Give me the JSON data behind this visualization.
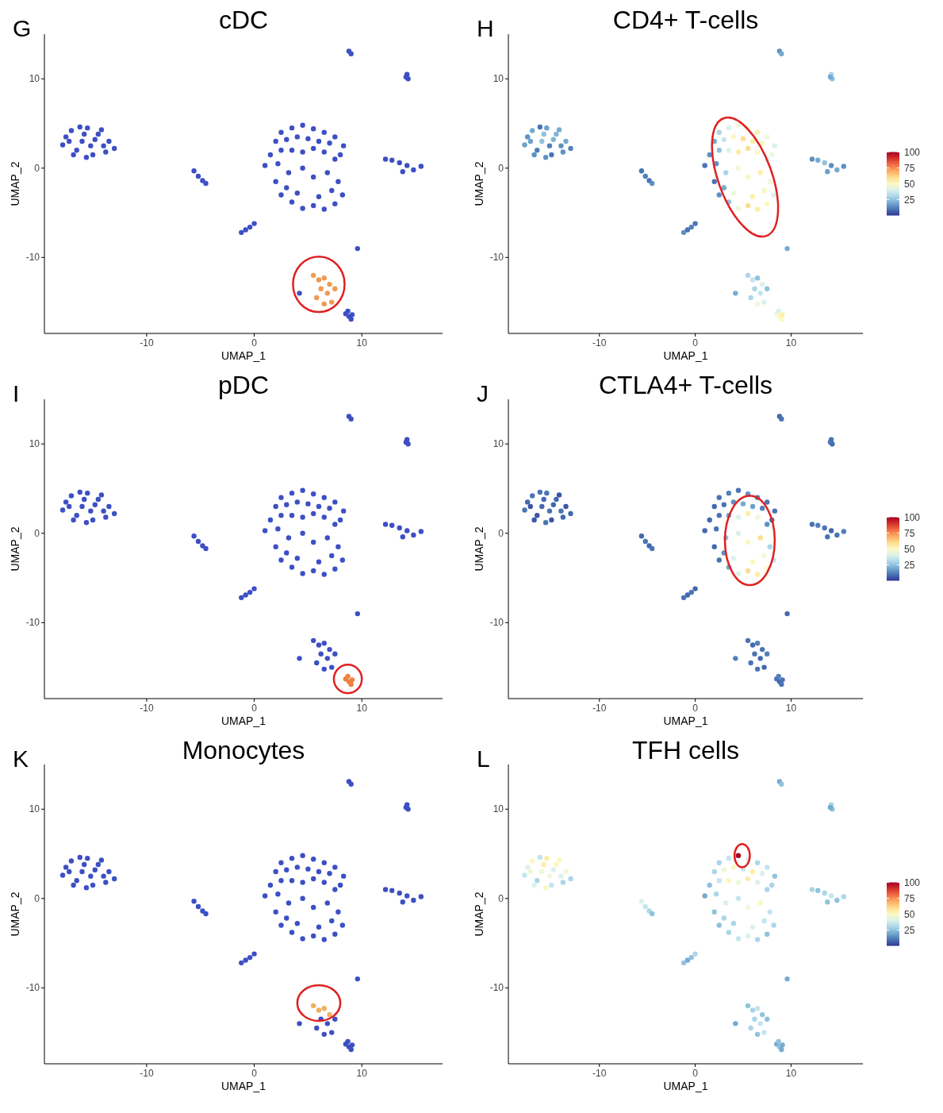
{
  "chart_data": [
    {
      "type": "scatter",
      "title": "cDC",
      "annotations": [
        "G"
      ],
      "xlabel": "UMAP_1",
      "ylabel": "UMAP_2",
      "xlim": [
        -19.5,
        17.5
      ],
      "ylim": [
        -18.5,
        15
      ],
      "xticks": [
        -10,
        0,
        10
      ],
      "yticks": [
        -10,
        0,
        10
      ],
      "marker": "circle",
      "series": [
        {
          "color": "#3d4fc4",
          "x": [
            -17.5,
            -17,
            -16.5,
            -16,
            -15.5,
            -15,
            -14.5,
            -14,
            -13.5,
            -13,
            -17.8,
            -16.8,
            -15.8,
            -15.2,
            -14.2,
            -13.8,
            -16.2,
            -17.2,
            -14.8,
            -15.6,
            -5.6,
            -5.2,
            -4.8,
            -4.5,
            -1.2,
            -0.8,
            -0.4,
            0,
            2.5,
            3.5,
            4.5,
            5.5,
            6.5,
            7.5,
            8.3,
            2,
            3,
            4,
            5,
            6,
            7,
            8,
            1.5,
            2.5,
            3.5,
            4.5,
            5.5,
            6.5,
            7.5,
            1,
            2.2,
            3.2,
            4.5,
            2,
            3,
            5.5,
            6.8,
            7.8,
            2.5,
            3.5,
            4.5,
            5.5,
            6.5,
            7.5,
            8.2,
            7.2,
            6,
            4,
            12.2,
            12.8,
            13.5,
            14.2,
            14.8,
            15.5,
            13.8,
            8.8,
            9,
            14.2,
            14.3,
            14.1,
            4.2,
            8.5,
            8.8,
            9.1,
            8.7,
            9,
            9.6
          ],
          "values": [
            3.5,
            4.2,
            2,
            3,
            4.5,
            1.5,
            3.8,
            2.5,
            3,
            2.2,
            2.6,
            1.5,
            3.8,
            2.5,
            4.3,
            1.8,
            4.6,
            3,
            3.2,
            1.2,
            -0.3,
            -0.9,
            -1.4,
            -1.7,
            -7.2,
            -6.9,
            -6.6,
            -6.2,
            4,
            4.5,
            4.8,
            4.4,
            4,
            3.5,
            2.5,
            3,
            3.2,
            3.5,
            3.3,
            3,
            2.8,
            1.5,
            1.5,
            2,
            2,
            1.8,
            2.2,
            1.8,
            1,
            0.3,
            0.5,
            -0.5,
            0,
            -1.5,
            -2.2,
            -1,
            -0.5,
            -1.5,
            -3,
            -3.8,
            -4.5,
            -4.2,
            -4.6,
            -4,
            -3,
            -2.5,
            -3.2,
            -2.8,
            1,
            0.9,
            0.6,
            0.3,
            -0.2,
            0.2,
            -0.4,
            13.1,
            12.8,
            10.5,
            10,
            10.2,
            -14,
            -16.3,
            -16.6,
            -16.4,
            -16,
            -16.9,
            -9
          ]
        },
        {
          "color": "#f09a50",
          "x": [
            5.5,
            6,
            6.5,
            7,
            6.2,
            6.8,
            7.5,
            5.8,
            7.2,
            6.5
          ],
          "values": [
            -12,
            -12.5,
            -12.3,
            -13,
            -13.5,
            -14,
            -13.5,
            -14.5,
            -15,
            -15.2
          ]
        }
      ]
    },
    {
      "type": "scatter",
      "title": "CD4+ T-cells",
      "annotations": [
        "H"
      ],
      "xlabel": "UMAP_1",
      "ylabel": "UMAP_2",
      "xlim": [
        -19.5,
        17.5
      ],
      "ylim": [
        -18.5,
        15
      ],
      "xticks": [
        -10,
        0,
        10
      ],
      "yticks": [
        -10,
        0,
        10
      ],
      "marker": "circle",
      "clim": [
        0,
        100
      ],
      "cticks": [
        25,
        50,
        75,
        100
      ],
      "x": [
        -17.5,
        -17,
        -16.5,
        -16,
        -15.5,
        -15,
        -14.5,
        -14,
        -13.5,
        -13,
        -17.8,
        -16.8,
        -15.8,
        -15.2,
        -14.2,
        -13.8,
        -16.2,
        -17.2,
        -14.8,
        -15.6,
        -5.6,
        -5.2,
        -4.8,
        -4.5,
        -1.2,
        -0.8,
        -0.4,
        0,
        2.5,
        3.5,
        4.5,
        5.5,
        6.5,
        7.5,
        8.3,
        2,
        3,
        4,
        5,
        6,
        7,
        8,
        1.5,
        2.5,
        3.5,
        4.5,
        5.5,
        6.5,
        7.5,
        1,
        2.2,
        3.2,
        4.5,
        2,
        3,
        5.5,
        6.8,
        7.8,
        2.5,
        3.5,
        4.5,
        5.5,
        6.5,
        7.5,
        8.2,
        7.2,
        6,
        4,
        12.2,
        12.8,
        13.5,
        14.2,
        14.8,
        15.5,
        13.8,
        8.8,
        9,
        14.2,
        14.3,
        14.1,
        5.5,
        6,
        6.5,
        7,
        6.2,
        6.8,
        7.5,
        5.8,
        7.2,
        6.5,
        4.2,
        8.5,
        8.8,
        9.1,
        8.7,
        9,
        9.6
      ],
      "values": [
        3.5,
        4.2,
        2,
        3,
        4.5,
        1.5,
        3.8,
        2.5,
        3,
        2.2,
        2.6,
        1.5,
        3.8,
        2.5,
        4.3,
        1.8,
        4.6,
        3,
        3.2,
        1.2,
        -0.3,
        -0.9,
        -1.4,
        -1.7,
        -7.2,
        -6.9,
        -6.6,
        -6.2,
        4,
        4.5,
        4.8,
        4.4,
        4,
        3.5,
        2.5,
        3,
        3.2,
        3.5,
        3.3,
        3,
        2.8,
        1.5,
        1.5,
        2,
        2,
        1.8,
        2.2,
        1.8,
        1,
        0.3,
        0.5,
        -0.5,
        0,
        -1.5,
        -2.2,
        -1,
        -0.5,
        -1.5,
        -3,
        -3.8,
        -4.5,
        -4.2,
        -4.6,
        -4,
        -3,
        -2.5,
        -3.2,
        -2.8,
        1,
        0.9,
        0.6,
        0.3,
        -0.2,
        0.2,
        -0.4,
        13.1,
        12.8,
        10.5,
        10,
        10.2,
        -12,
        -12.5,
        -12.3,
        -13,
        -13.5,
        -14,
        -13.5,
        -14.5,
        -15,
        -15.2,
        -14,
        -16.3,
        -16.6,
        -16.4,
        -16,
        -16.9,
        -9
      ],
      "cvalues": [
        15,
        20,
        12,
        25,
        18,
        10,
        22,
        15,
        20,
        12,
        18,
        15,
        25,
        12,
        20,
        15,
        10,
        18,
        22,
        15,
        10,
        12,
        10,
        15,
        15,
        10,
        12,
        10,
        30,
        40,
        45,
        50,
        55,
        45,
        40,
        20,
        35,
        50,
        60,
        55,
        50,
        45,
        15,
        25,
        40,
        55,
        60,
        50,
        40,
        10,
        15,
        30,
        45,
        10,
        20,
        50,
        55,
        45,
        15,
        25,
        45,
        60,
        55,
        50,
        40,
        50,
        55,
        45,
        15,
        20,
        25,
        15,
        20,
        15,
        18,
        15,
        20,
        30,
        25,
        20,
        30,
        35,
        25,
        40,
        30,
        35,
        25,
        30,
        40,
        45,
        20,
        45,
        50,
        55,
        40,
        50,
        20
      ]
    },
    {
      "type": "scatter",
      "title": "pDC",
      "annotations": [
        "I"
      ],
      "xlabel": "UMAP_1",
      "ylabel": "UMAP_2",
      "xlim": [
        -19.5,
        17.5
      ],
      "ylim": [
        -18.5,
        15
      ],
      "xticks": [
        -10,
        0,
        10
      ],
      "yticks": [
        -10,
        0,
        10
      ],
      "marker": "circle",
      "series": [
        {
          "color": "#3d4fc4",
          "x": [
            -17.5,
            -17,
            -16.5,
            -16,
            -15.5,
            -15,
            -14.5,
            -14,
            -13.5,
            -13,
            -17.8,
            -16.8,
            -15.8,
            -15.2,
            -14.2,
            -13.8,
            -16.2,
            -17.2,
            -14.8,
            -15.6,
            -5.6,
            -5.2,
            -4.8,
            -4.5,
            -1.2,
            -0.8,
            -0.4,
            0,
            2.5,
            3.5,
            4.5,
            5.5,
            6.5,
            7.5,
            8.3,
            2,
            3,
            4,
            5,
            6,
            7,
            8,
            1.5,
            2.5,
            3.5,
            4.5,
            5.5,
            6.5,
            7.5,
            1,
            2.2,
            3.2,
            4.5,
            2,
            3,
            5.5,
            6.8,
            7.8,
            2.5,
            3.5,
            4.5,
            5.5,
            6.5,
            7.5,
            8.2,
            7.2,
            6,
            4,
            12.2,
            12.8,
            13.5,
            14.2,
            14.8,
            15.5,
            13.8,
            8.8,
            9,
            14.2,
            14.3,
            14.1,
            5.5,
            6,
            6.5,
            7,
            6.2,
            6.8,
            7.5,
            5.8,
            7.2,
            6.5,
            4.2,
            9.6
          ],
          "values": [
            3.5,
            4.2,
            2,
            3,
            4.5,
            1.5,
            3.8,
            2.5,
            3,
            2.2,
            2.6,
            1.5,
            3.8,
            2.5,
            4.3,
            1.8,
            4.6,
            3,
            3.2,
            1.2,
            -0.3,
            -0.9,
            -1.4,
            -1.7,
            -7.2,
            -6.9,
            -6.6,
            -6.2,
            4,
            4.5,
            4.8,
            4.4,
            4,
            3.5,
            2.5,
            3,
            3.2,
            3.5,
            3.3,
            3,
            2.8,
            1.5,
            1.5,
            2,
            2,
            1.8,
            2.2,
            1.8,
            1,
            0.3,
            0.5,
            -0.5,
            0,
            -1.5,
            -2.2,
            -1,
            -0.5,
            -1.5,
            -3,
            -3.8,
            -4.5,
            -4.2,
            -4.6,
            -4,
            -3,
            -2.5,
            -3.2,
            -2.8,
            1,
            0.9,
            0.6,
            0.3,
            -0.2,
            0.2,
            -0.4,
            13.1,
            12.8,
            10.5,
            10,
            10.2,
            -12,
            -12.5,
            -12.3,
            -13,
            -13.5,
            -14,
            -13.5,
            -14.5,
            -15,
            -15.2,
            -14,
            -9
          ]
        },
        {
          "color": "#f08040",
          "x": [
            8.5,
            8.8,
            9.1,
            8.7,
            9
          ],
          "values": [
            -16.3,
            -16.6,
            -16.4,
            -16,
            -16.9
          ]
        }
      ]
    },
    {
      "type": "scatter",
      "title": "CTLA4+ T-cells",
      "annotations": [
        "J"
      ],
      "xlabel": "UMAP_1",
      "ylabel": "UMAP_2",
      "xlim": [
        -19.5,
        17.5
      ],
      "ylim": [
        -18.5,
        15
      ],
      "xticks": [
        -10,
        0,
        10
      ],
      "yticks": [
        -10,
        0,
        10
      ],
      "marker": "circle",
      "clim": [
        0,
        100
      ],
      "cticks": [
        25,
        50,
        75,
        100
      ],
      "x": [
        -17.5,
        -17,
        -16.5,
        -16,
        -15.5,
        -15,
        -14.5,
        -14,
        -13.5,
        -13,
        -17.8,
        -16.8,
        -15.8,
        -15.2,
        -14.2,
        -13.8,
        -16.2,
        -17.2,
        -14.8,
        -15.6,
        -5.6,
        -5.2,
        -4.8,
        -4.5,
        -1.2,
        -0.8,
        -0.4,
        0,
        2.5,
        3.5,
        4.5,
        5.5,
        6.5,
        7.5,
        8.3,
        2,
        3,
        4,
        5,
        6,
        7,
        8,
        1.5,
        2.5,
        3.5,
        4.5,
        5.5,
        6.5,
        7.5,
        1,
        2.2,
        3.2,
        4.5,
        2,
        3,
        5.5,
        6.8,
        7.8,
        2.5,
        3.5,
        4.5,
        5.5,
        6.5,
        7.5,
        8.2,
        7.2,
        6,
        4,
        12.2,
        12.8,
        13.5,
        14.2,
        14.8,
        15.5,
        13.8,
        8.8,
        9,
        14.2,
        14.3,
        14.1,
        5.5,
        6,
        6.5,
        7,
        6.2,
        6.8,
        7.5,
        5.8,
        7.2,
        6.5,
        4.2,
        8.5,
        8.8,
        9.1,
        8.7,
        9,
        9.6
      ],
      "values": [
        3.5,
        4.2,
        2,
        3,
        4.5,
        1.5,
        3.8,
        2.5,
        3,
        2.2,
        2.6,
        1.5,
        3.8,
        2.5,
        4.3,
        1.8,
        4.6,
        3,
        3.2,
        1.2,
        -0.3,
        -0.9,
        -1.4,
        -1.7,
        -7.2,
        -6.9,
        -6.6,
        -6.2,
        4,
        4.5,
        4.8,
        4.4,
        4,
        3.5,
        2.5,
        3,
        3.2,
        3.5,
        3.3,
        3,
        2.8,
        1.5,
        1.5,
        2,
        2,
        1.8,
        2.2,
        1.8,
        1,
        0.3,
        0.5,
        -0.5,
        0,
        -1.5,
        -2.2,
        -1,
        -0.5,
        -1.5,
        -3,
        -3.8,
        -4.5,
        -4.2,
        -4.6,
        -4,
        -3,
        -2.5,
        -3.2,
        -2.8,
        1,
        0.9,
        0.6,
        0.3,
        -0.2,
        0.2,
        -0.4,
        13.1,
        12.8,
        10.5,
        10,
        10.2,
        -12,
        -12.5,
        -12.3,
        -13,
        -13.5,
        -14,
        -13.5,
        -14.5,
        -15,
        -15.2,
        -14,
        -16.3,
        -16.6,
        -16.4,
        -16,
        -16.9,
        -9
      ],
      "cvalues": [
        8,
        10,
        5,
        8,
        10,
        5,
        8,
        10,
        5,
        8,
        10,
        5,
        8,
        10,
        5,
        8,
        10,
        5,
        8,
        10,
        8,
        10,
        8,
        10,
        10,
        8,
        10,
        8,
        10,
        12,
        10,
        15,
        12,
        10,
        10,
        8,
        10,
        15,
        20,
        18,
        12,
        10,
        8,
        10,
        20,
        40,
        55,
        45,
        15,
        8,
        10,
        25,
        40,
        8,
        15,
        50,
        60,
        30,
        10,
        20,
        40,
        60,
        55,
        50,
        35,
        45,
        50,
        40,
        10,
        12,
        10,
        8,
        10,
        12,
        10,
        8,
        10,
        10,
        8,
        10,
        10,
        8,
        12,
        10,
        10,
        8,
        12,
        10,
        8,
        10,
        12,
        10,
        8,
        10,
        12,
        10,
        8
      ]
    },
    {
      "type": "scatter",
      "title": "Monocytes",
      "annotations": [
        "K"
      ],
      "xlabel": "UMAP_1",
      "ylabel": "UMAP_2",
      "xlim": [
        -19.5,
        17.5
      ],
      "ylim": [
        -18.5,
        15
      ],
      "xticks": [
        -10,
        0,
        10
      ],
      "yticks": [
        -10,
        0,
        10
      ],
      "marker": "circle",
      "series": [
        {
          "color": "#3d4fc4",
          "x": [
            -17.5,
            -17,
            -16.5,
            -16,
            -15.5,
            -15,
            -14.5,
            -14,
            -13.5,
            -13,
            -17.8,
            -16.8,
            -15.8,
            -15.2,
            -14.2,
            -13.8,
            -16.2,
            -17.2,
            -14.8,
            -15.6,
            -5.6,
            -5.2,
            -4.8,
            -4.5,
            -1.2,
            -0.8,
            -0.4,
            0,
            2.5,
            3.5,
            4.5,
            5.5,
            6.5,
            7.5,
            8.3,
            2,
            3,
            4,
            5,
            6,
            7,
            8,
            1.5,
            2.5,
            3.5,
            4.5,
            5.5,
            6.5,
            7.5,
            1,
            2.2,
            3.2,
            4.5,
            2,
            3,
            5.5,
            6.8,
            7.8,
            2.5,
            3.5,
            4.5,
            5.5,
            6.5,
            7.5,
            8.2,
            7.2,
            6,
            4,
            12.2,
            12.8,
            13.5,
            14.2,
            14.8,
            15.5,
            13.8,
            8.8,
            9,
            14.2,
            14.3,
            14.1,
            6.2,
            6.8,
            7.5,
            5.8,
            7.2,
            6.5,
            4.2,
            8.5,
            8.8,
            9.1,
            8.7,
            9,
            9.6
          ],
          "values": [
            3.5,
            4.2,
            2,
            3,
            4.5,
            1.5,
            3.8,
            2.5,
            3,
            2.2,
            2.6,
            1.5,
            3.8,
            2.5,
            4.3,
            1.8,
            4.6,
            3,
            3.2,
            1.2,
            -0.3,
            -0.9,
            -1.4,
            -1.7,
            -7.2,
            -6.9,
            -6.6,
            -6.2,
            4,
            4.5,
            4.8,
            4.4,
            4,
            3.5,
            2.5,
            3,
            3.2,
            3.5,
            3.3,
            3,
            2.8,
            1.5,
            1.5,
            2,
            2,
            1.8,
            2.2,
            1.8,
            1,
            0.3,
            0.5,
            -0.5,
            0,
            -1.5,
            -2.2,
            -1,
            -0.5,
            -1.5,
            -3,
            -3.8,
            -4.5,
            -4.2,
            -4.6,
            -4,
            -3,
            -2.5,
            -3.2,
            -2.8,
            1,
            0.9,
            0.6,
            0.3,
            -0.2,
            0.2,
            -0.4,
            13.1,
            12.8,
            10.5,
            10,
            10.2,
            -13.5,
            -14,
            -13.5,
            -14.5,
            -15,
            -15.2,
            -14,
            -16.3,
            -16.6,
            -16.4,
            -16,
            -16.9,
            -9
          ]
        },
        {
          "color": "#f0b060",
          "x": [
            5.5,
            6,
            6.5,
            7
          ],
          "values": [
            -12,
            -12.5,
            -12.3,
            -13
          ]
        }
      ]
    },
    {
      "type": "scatter",
      "title": "TFH cells",
      "annotations": [
        "L"
      ],
      "xlabel": "UMAP_1",
      "ylabel": "UMAP_2",
      "xlim": [
        -19.5,
        17.5
      ],
      "ylim": [
        -18.5,
        15
      ],
      "xticks": [
        -10,
        0,
        10
      ],
      "yticks": [
        -10,
        0,
        10
      ],
      "marker": "circle",
      "clim": [
        0,
        100
      ],
      "cticks": [
        25,
        50,
        75,
        100
      ],
      "x": [
        -17.5,
        -17,
        -16.5,
        -16,
        -15.5,
        -15,
        -14.5,
        -14,
        -13.5,
        -13,
        -17.8,
        -16.8,
        -15.8,
        -15.2,
        -14.2,
        -13.8,
        -16.2,
        -17.2,
        -14.8,
        -15.6,
        -5.6,
        -5.2,
        -4.8,
        -4.5,
        -1.2,
        -0.8,
        -0.4,
        0,
        2.5,
        3.5,
        4.5,
        5.5,
        6.5,
        7.5,
        8.3,
        2,
        3,
        4,
        5,
        6,
        7,
        8,
        1.5,
        2.5,
        3.5,
        4.5,
        5.5,
        6.5,
        7.5,
        1,
        2.2,
        3.2,
        4.5,
        2,
        3,
        5.5,
        6.8,
        7.8,
        2.5,
        3.5,
        4.5,
        5.5,
        6.5,
        7.5,
        8.2,
        7.2,
        6,
        4,
        12.2,
        12.8,
        13.5,
        14.2,
        14.8,
        15.5,
        13.8,
        8.8,
        9,
        14.2,
        14.3,
        14.1,
        5.5,
        6,
        6.5,
        7,
        6.2,
        6.8,
        7.5,
        5.8,
        7.2,
        6.5,
        4.2,
        8.5,
        8.8,
        9.1,
        8.7,
        9,
        9.6
      ],
      "values": [
        3.5,
        4.2,
        2,
        3,
        4.5,
        1.5,
        3.8,
        2.5,
        3,
        2.2,
        2.6,
        1.5,
        3.8,
        2.5,
        4.3,
        1.8,
        4.6,
        3,
        3.2,
        1.2,
        -0.3,
        -0.9,
        -1.4,
        -1.7,
        -7.2,
        -6.9,
        -6.6,
        -6.2,
        4,
        4.5,
        4.8,
        4.4,
        4,
        3.5,
        2.5,
        3,
        3.2,
        3.5,
        3.3,
        3,
        2.8,
        1.5,
        1.5,
        2,
        2,
        1.8,
        2.2,
        1.8,
        1,
        0.3,
        0.5,
        -0.5,
        0,
        -1.5,
        -2.2,
        -1,
        -0.5,
        -1.5,
        -3,
        -3.8,
        -4.5,
        -4.2,
        -4.6,
        -4,
        -3,
        -2.5,
        -3.2,
        -2.8,
        1,
        0.9,
        0.6,
        0.3,
        -0.2,
        0.2,
        -0.4,
        13.1,
        12.8,
        10.5,
        10,
        10.2,
        -12,
        -12.5,
        -12.3,
        -13,
        -13.5,
        -14,
        -13.5,
        -14.5,
        -15,
        -15.2,
        -14,
        -16.3,
        -16.6,
        -16.4,
        -16,
        -16.9,
        -9
      ],
      "cvalues": [
        40,
        50,
        30,
        45,
        55,
        35,
        50,
        40,
        45,
        30,
        35,
        40,
        55,
        45,
        50,
        30,
        35,
        45,
        40,
        50,
        40,
        35,
        30,
        25,
        25,
        20,
        25,
        30,
        30,
        35,
        100,
        40,
        30,
        35,
        25,
        30,
        45,
        50,
        35,
        55,
        40,
        30,
        25,
        35,
        50,
        45,
        55,
        40,
        30,
        20,
        30,
        40,
        35,
        25,
        30,
        45,
        50,
        35,
        25,
        30,
        35,
        40,
        30,
        25,
        30,
        35,
        40,
        30,
        30,
        25,
        30,
        35,
        25,
        30,
        25,
        20,
        25,
        30,
        25,
        20,
        25,
        30,
        35,
        25,
        30,
        35,
        25,
        30,
        35,
        25,
        20,
        20,
        25,
        20,
        25,
        20,
        20
      ]
    }
  ]
}
